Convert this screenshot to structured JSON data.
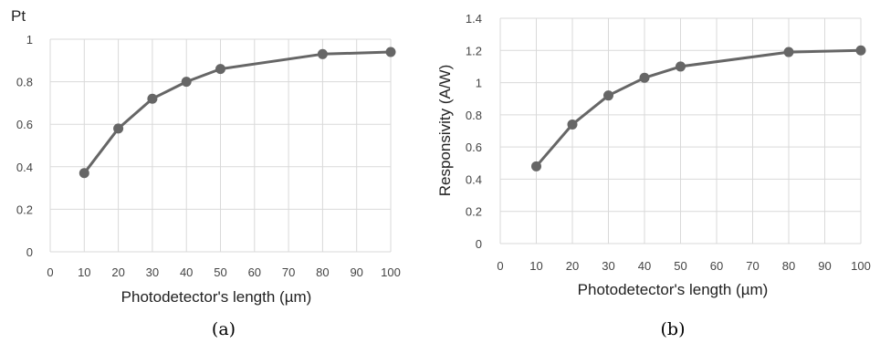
{
  "chart_data": [
    {
      "type": "line",
      "caption": "(a)",
      "ylabel": "Pt",
      "xlabel": "Photodetector's length (µm)",
      "xlim": [
        0,
        100
      ],
      "ylim": [
        0,
        1
      ],
      "xticks": [
        "0",
        "10",
        "20",
        "30",
        "40",
        "50",
        "60",
        "70",
        "80",
        "90",
        "100"
      ],
      "yticks": [
        "0",
        "0.2",
        "0.4",
        "0.6",
        "0.8",
        "1"
      ],
      "grid": true,
      "series": [
        {
          "x": [
            10,
            20,
            30,
            40,
            50,
            80,
            100
          ],
          "y": [
            0.37,
            0.58,
            0.72,
            0.8,
            0.86,
            0.93,
            0.94
          ]
        }
      ],
      "color": "#666666"
    },
    {
      "type": "line",
      "caption": "(b)",
      "ylabel": "Responsivity (A/W)",
      "xlabel": "Photodetector's length (µm)",
      "xlim": [
        0,
        100
      ],
      "ylim": [
        0,
        1.4
      ],
      "xticks": [
        "0",
        "10",
        "20",
        "30",
        "40",
        "50",
        "60",
        "70",
        "80",
        "90",
        "100"
      ],
      "yticks": [
        "0",
        "0.2",
        "0.4",
        "0.6",
        "0.8",
        "1",
        "1.2",
        "1.4"
      ],
      "grid": true,
      "series": [
        {
          "x": [
            10,
            20,
            30,
            40,
            50,
            80,
            100
          ],
          "y": [
            0.48,
            0.74,
            0.92,
            1.03,
            1.1,
            1.19,
            1.2
          ]
        }
      ],
      "color": "#666666"
    }
  ]
}
